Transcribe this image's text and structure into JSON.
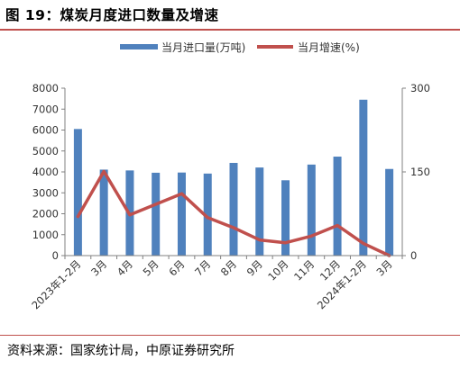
{
  "header": {
    "title": "图 19：煤炭月度进口数量及增速"
  },
  "footer": {
    "source": "资料来源：国家统计局，中原证券研究所"
  },
  "chart_data": {
    "type": "bar",
    "categories": [
      "2023年1-2月",
      "3月",
      "4月",
      "5月",
      "6月",
      "7月",
      "8月",
      "9月",
      "10月",
      "11月",
      "12月",
      "2024年1-2月",
      "3月"
    ],
    "series": [
      {
        "name": "当月进口量(万吨)",
        "type": "bar",
        "axis": "left",
        "color": "#4f81bd",
        "values": [
          6050,
          4110,
          4070,
          3960,
          3970,
          3920,
          4430,
          4210,
          3600,
          4350,
          4730,
          7450,
          4140
        ]
      },
      {
        "name": "当月增速(%)",
        "type": "line",
        "axis": "right",
        "color": "#c0504d",
        "values": [
          70,
          151,
          73,
          92,
          111,
          68,
          50,
          28,
          23,
          35,
          54,
          22,
          0
        ]
      }
    ],
    "yleft": {
      "ylim": [
        0,
        8000
      ],
      "ticks": [
        0,
        1000,
        2000,
        3000,
        4000,
        5000,
        6000,
        7000,
        8000
      ]
    },
    "yright": {
      "ylim": [
        0,
        300
      ],
      "ticks": [
        0,
        150,
        300
      ]
    },
    "legend": "top",
    "grid": false
  }
}
